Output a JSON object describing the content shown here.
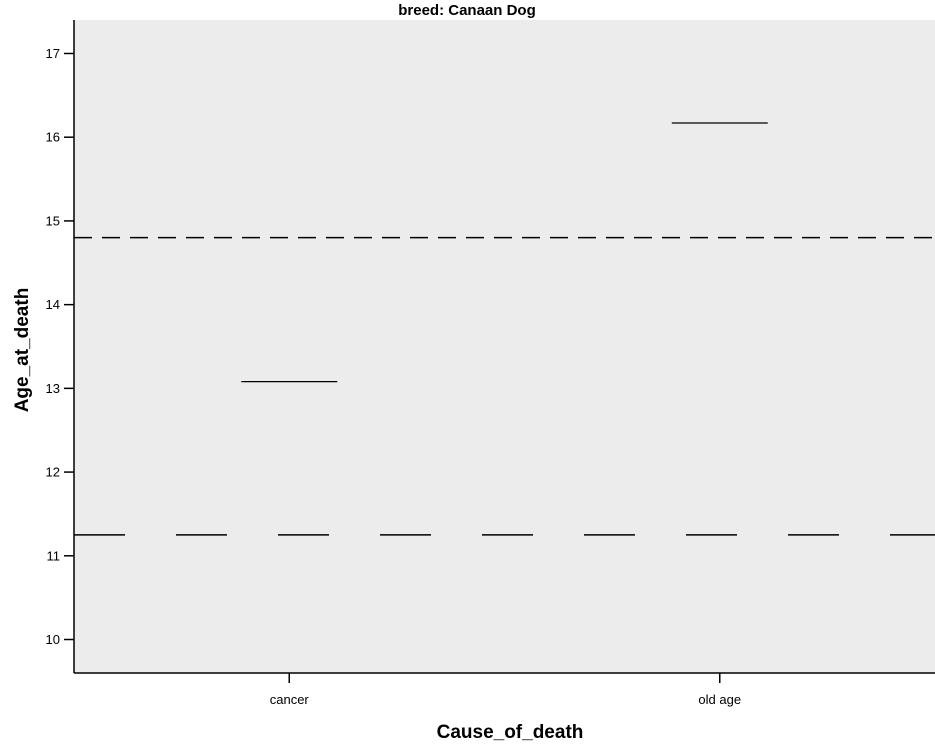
{
  "chart_data": {
    "type": "box",
    "title": "breed: Canaan Dog",
    "xlabel": "Cause_of_death",
    "ylabel": "Age_at_death",
    "categories": [
      "cancer",
      "old age"
    ],
    "series": [
      {
        "values": [
          13.08,
          16.17
        ]
      }
    ],
    "reference_lines": [
      {
        "value": 14.8,
        "style": "short-dash"
      },
      {
        "value": 11.25,
        "style": "long-dash"
      }
    ],
    "ylim": [
      9.6,
      17.4
    ],
    "yticks": [
      10,
      11,
      12,
      13,
      14,
      15,
      16,
      17
    ],
    "grid": false,
    "background": "#ececec"
  }
}
